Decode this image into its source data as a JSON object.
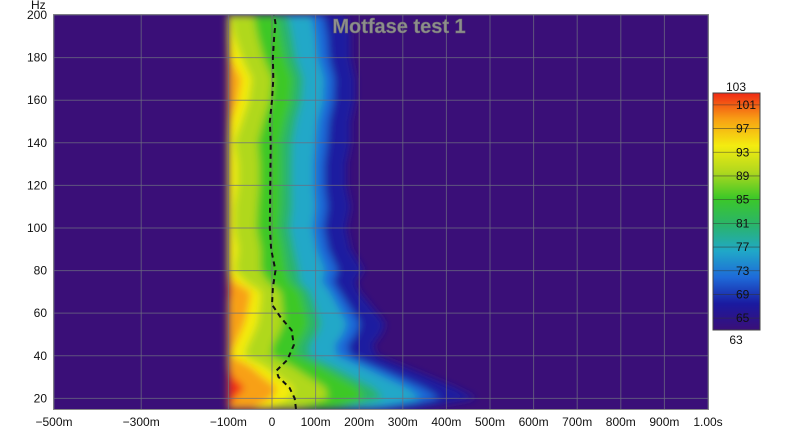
{
  "chart_data": {
    "type": "heatmap",
    "title": "Motfase test 1",
    "xlabel": "",
    "ylabel": "Hz",
    "xlim": [
      -0.5,
      1.0
    ],
    "ylim": [
      15,
      200
    ],
    "x_ticks": [
      {
        "value": -0.5,
        "label": "−500m"
      },
      {
        "value": -0.3,
        "label": "−300m"
      },
      {
        "value": -0.1,
        "label": "−100m"
      },
      {
        "value": 0.0,
        "label": "0"
      },
      {
        "value": 0.1,
        "label": "100m"
      },
      {
        "value": 0.2,
        "label": "200m"
      },
      {
        "value": 0.3,
        "label": "300m"
      },
      {
        "value": 0.4,
        "label": "400m"
      },
      {
        "value": 0.5,
        "label": "500m"
      },
      {
        "value": 0.6,
        "label": "600m"
      },
      {
        "value": 0.7,
        "label": "700m"
      },
      {
        "value": 0.8,
        "label": "800m"
      },
      {
        "value": 0.9,
        "label": "900m"
      },
      {
        "value": 1.0,
        "label": "1.00s"
      }
    ],
    "y_ticks": [
      {
        "value": 20,
        "label": "20"
      },
      {
        "value": 40,
        "label": "40"
      },
      {
        "value": 60,
        "label": "60"
      },
      {
        "value": 80,
        "label": "80"
      },
      {
        "value": 100,
        "label": "100"
      },
      {
        "value": 120,
        "label": "120"
      },
      {
        "value": 140,
        "label": "140"
      },
      {
        "value": 160,
        "label": "160"
      },
      {
        "value": 180,
        "label": "180"
      },
      {
        "value": 200,
        "label": "200"
      }
    ],
    "grid": true,
    "background_color": "#3a0f78",
    "colorbar": {
      "min": 63,
      "max": 103,
      "min_label": "63",
      "max_label": "103",
      "ticks": [
        65,
        69,
        73,
        77,
        81,
        85,
        89,
        93,
        97,
        101
      ],
      "colors": [
        "#3a0f78",
        "#1a1aa0",
        "#1e6ad8",
        "#20a8c8",
        "#2ab46a",
        "#3cc828",
        "#b0d81e",
        "#f4ec10",
        "#f8a014",
        "#f02814"
      ]
    },
    "energy_start_s": -0.1,
    "energy_profile": [
      {
        "hz": 15,
        "end_s": 0.33,
        "peak": 99
      },
      {
        "hz": 20,
        "end_s": 0.47,
        "peak": 101
      },
      {
        "hz": 25,
        "end_s": 0.42,
        "peak": 103
      },
      {
        "hz": 30,
        "end_s": 0.36,
        "peak": 101
      },
      {
        "hz": 35,
        "end_s": 0.3,
        "peak": 99
      },
      {
        "hz": 40,
        "end_s": 0.24,
        "peak": 95
      },
      {
        "hz": 45,
        "end_s": 0.23,
        "peak": 96
      },
      {
        "hz": 50,
        "end_s": 0.25,
        "peak": 97
      },
      {
        "hz": 55,
        "end_s": 0.26,
        "peak": 98
      },
      {
        "hz": 60,
        "end_s": 0.24,
        "peak": 99
      },
      {
        "hz": 65,
        "end_s": 0.22,
        "peak": 100
      },
      {
        "hz": 70,
        "end_s": 0.2,
        "peak": 101
      },
      {
        "hz": 75,
        "end_s": 0.19,
        "peak": 96
      },
      {
        "hz": 80,
        "end_s": 0.21,
        "peak": 93
      },
      {
        "hz": 90,
        "end_s": 0.18,
        "peak": 94
      },
      {
        "hz": 100,
        "end_s": 0.17,
        "peak": 93
      },
      {
        "hz": 110,
        "end_s": 0.18,
        "peak": 93
      },
      {
        "hz": 120,
        "end_s": 0.17,
        "peak": 94
      },
      {
        "hz": 130,
        "end_s": 0.17,
        "peak": 94
      },
      {
        "hz": 140,
        "end_s": 0.18,
        "peak": 93
      },
      {
        "hz": 150,
        "end_s": 0.18,
        "peak": 95
      },
      {
        "hz": 160,
        "end_s": 0.19,
        "peak": 97
      },
      {
        "hz": 170,
        "end_s": 0.19,
        "peak": 98
      },
      {
        "hz": 180,
        "end_s": 0.18,
        "peak": 95
      },
      {
        "hz": 190,
        "end_s": 0.18,
        "peak": 93
      },
      {
        "hz": 200,
        "end_s": 0.17,
        "peak": 92
      }
    ],
    "peak_time_curve": [
      {
        "hz": 15,
        "t": 0.055
      },
      {
        "hz": 20,
        "t": 0.052
      },
      {
        "hz": 25,
        "t": 0.04
      },
      {
        "hz": 30,
        "t": 0.015
      },
      {
        "hz": 33,
        "t": 0.01
      },
      {
        "hz": 38,
        "t": 0.035
      },
      {
        "hz": 45,
        "t": 0.05
      },
      {
        "hz": 52,
        "t": 0.045
      },
      {
        "hz": 58,
        "t": 0.02
      },
      {
        "hz": 64,
        "t": 0.0
      },
      {
        "hz": 72,
        "t": 0.002
      },
      {
        "hz": 80,
        "t": 0.008
      },
      {
        "hz": 90,
        "t": -0.002
      },
      {
        "hz": 100,
        "t": -0.005
      },
      {
        "hz": 120,
        "t": -0.004
      },
      {
        "hz": 140,
        "t": -0.003
      },
      {
        "hz": 150,
        "t": -0.005
      },
      {
        "hz": 160,
        "t": 0.0
      },
      {
        "hz": 170,
        "t": 0.003
      },
      {
        "hz": 180,
        "t": 0.002
      },
      {
        "hz": 190,
        "t": 0.005
      },
      {
        "hz": 196,
        "t": 0.008
      },
      {
        "hz": 200,
        "t": 0.005
      }
    ]
  }
}
